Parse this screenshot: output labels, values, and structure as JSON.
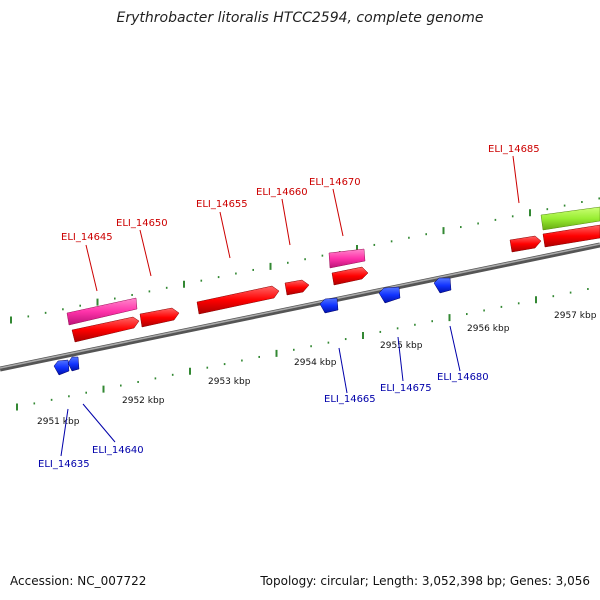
{
  "title": "Erythrobacter litoralis HTCC2594, complete genome",
  "footer": {
    "accession": "Accession: NC_007722",
    "summary": "Topology: circular; Length: 3,052,398 bp; Genes: 3,056"
  },
  "colors": {
    "forward_label": "#cc0000",
    "reverse_label": "#0000aa",
    "cds": "#ff0000",
    "gene_magenta": "#ff33aa",
    "gene_green": "#99ee33",
    "reverse_cds": "#1133ff",
    "backbone": "#777777",
    "ticks": "#338833"
  },
  "ruler": [
    {
      "label": "2951 kbp"
    },
    {
      "label": "2952 kbp"
    },
    {
      "label": "2953 kbp"
    },
    {
      "label": "2954 kbp"
    },
    {
      "label": "2955 kbp"
    },
    {
      "label": "2956 kbp"
    },
    {
      "label": "2957 kbp"
    }
  ],
  "forward_labels": [
    {
      "label": "ELI_14645"
    },
    {
      "label": "ELI_14650"
    },
    {
      "label": "ELI_14655"
    },
    {
      "label": "ELI_14660"
    },
    {
      "label": "ELI_14670"
    },
    {
      "label": "ELI_14685"
    }
  ],
  "reverse_labels": [
    {
      "label": "ELI_14635"
    },
    {
      "label": "ELI_14640"
    },
    {
      "label": "ELI_14665"
    },
    {
      "label": "ELI_14675"
    },
    {
      "label": "ELI_14680"
    }
  ]
}
